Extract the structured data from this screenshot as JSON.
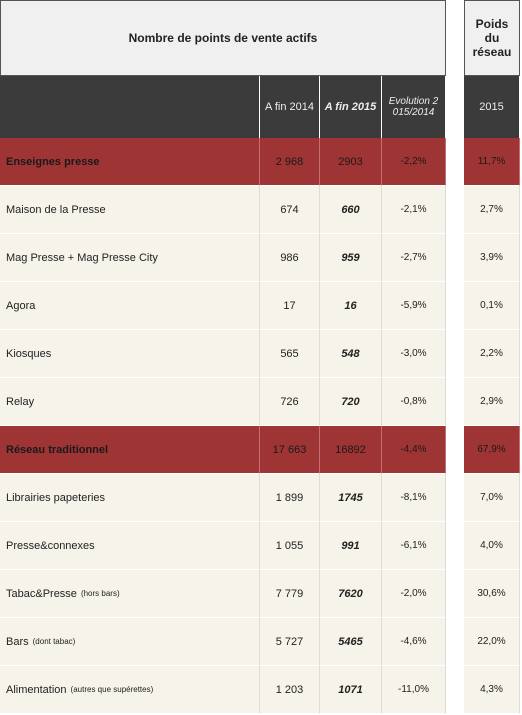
{
  "table": {
    "title": "Nombre de points de vente actifs",
    "weight_title": "Poids du réseau",
    "columns": [
      "A fin 2014",
      "A fin 2015",
      "Evolution 2015/2014",
      "2015"
    ],
    "rows": [
      {
        "label": "Enseignes presse",
        "cells": [
          "2 968",
          "2903",
          "-2,2%",
          "11,7%"
        ],
        "highlight": true
      },
      {
        "label": "Maison de la Presse",
        "cells": [
          "674",
          "660",
          "-2,1%",
          "2,7%"
        ]
      },
      {
        "label": "Mag Presse + Mag Presse City",
        "cells": [
          "986",
          "959",
          "-2,7%",
          "3,9%"
        ]
      },
      {
        "label": "Agora",
        "cells": [
          "17",
          "16",
          "-5,9%",
          "0,1%"
        ]
      },
      {
        "label": "Kiosques",
        "cells": [
          "565",
          "548",
          "-3,0%",
          "2,2%"
        ]
      },
      {
        "label": "Relay",
        "cells": [
          "726",
          "720",
          "-0,8%",
          "2,9%"
        ]
      },
      {
        "label": "Réseau traditionnel",
        "cells": [
          "17 663",
          "16892",
          "-4,4%",
          "67,9%"
        ],
        "highlight": true
      },
      {
        "label": "Librairies papeteries",
        "cells": [
          "1 899",
          "1745",
          "-8,1%",
          "7,0%"
        ]
      },
      {
        "label": "Presse&connexes",
        "cells": [
          "1 055",
          "991",
          "-6,1%",
          "4,0%"
        ]
      },
      {
        "label": "Tabac&Presse",
        "note": "(hors bars)",
        "cells": [
          "7 779",
          "7620",
          "-2,0%",
          "30,6%"
        ]
      },
      {
        "label": "Bars",
        "note": "(dont tabac)",
        "cells": [
          "5 727",
          "5465",
          "-4,6%",
          "22,0%"
        ]
      },
      {
        "label": "Alimentation",
        "note": "(autres que supérettes)",
        "cells": [
          "1 203",
          "1071",
          "-11,0%",
          "4,3%"
        ]
      }
    ]
  }
}
